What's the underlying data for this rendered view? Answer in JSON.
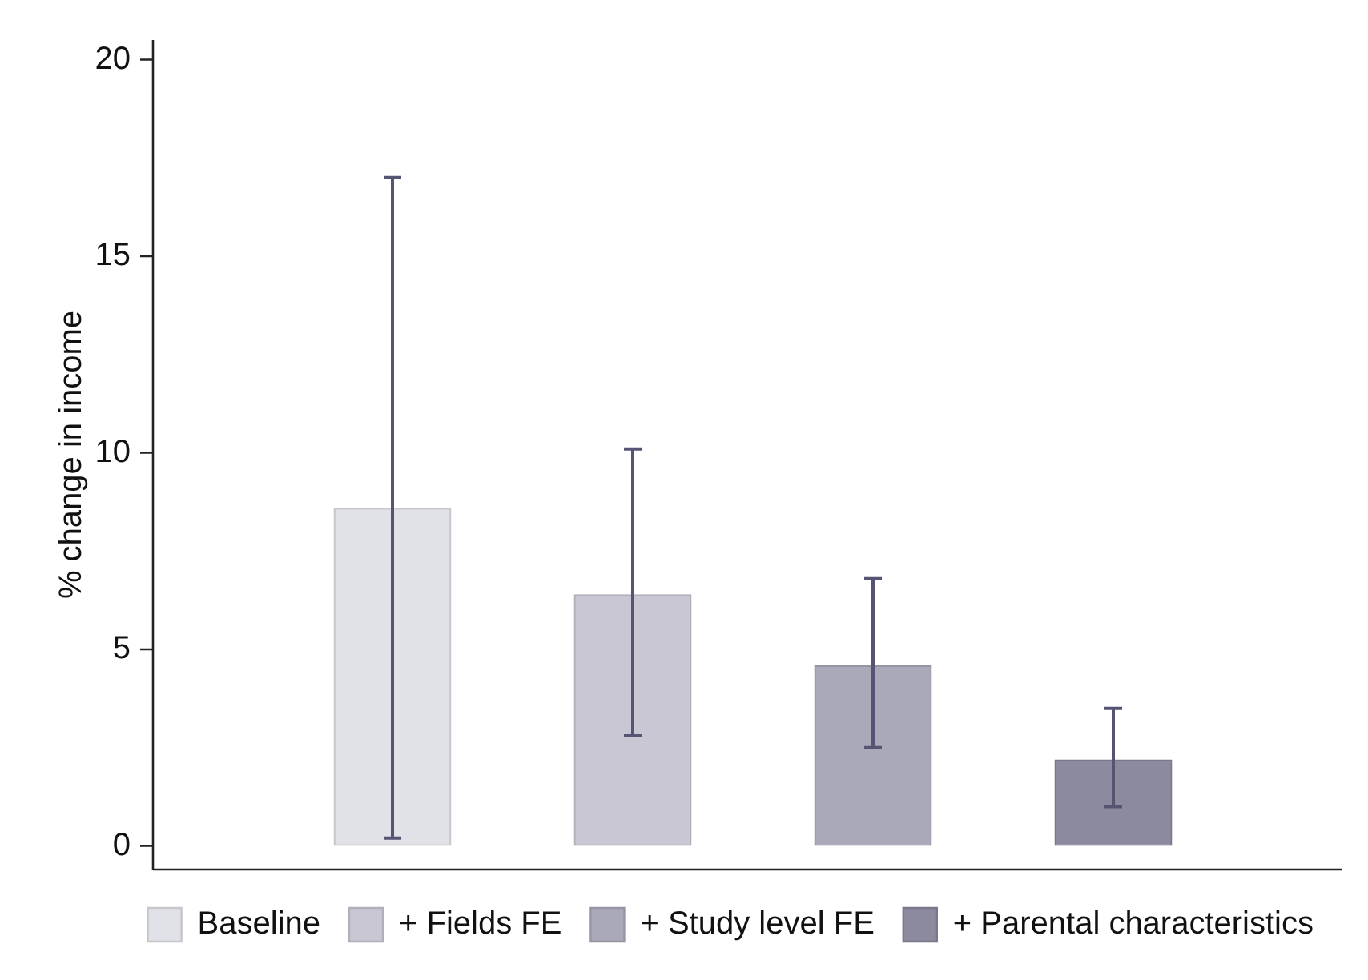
{
  "chart_data": {
    "type": "bar",
    "ylabel": "% change in income",
    "categories": [
      null,
      null,
      null,
      null
    ],
    "series": [
      {
        "name": "Baseline",
        "color": "#e1e2e8",
        "values": [
          8.6,
          null,
          null,
          null
        ],
        "errors": [
          [
            0.2,
            17.0
          ],
          null,
          null,
          null
        ]
      },
      {
        "name": "+ Fields FE",
        "color": "#c8c7d3",
        "values": [
          null,
          6.4,
          null,
          null
        ],
        "errors": [
          null,
          [
            2.8,
            10.1
          ],
          null,
          null
        ]
      },
      {
        "name": "+ Study level FE",
        "color": "#aaa9ba",
        "values": [
          null,
          null,
          4.6,
          null
        ],
        "errors": [
          null,
          null,
          [
            2.5,
            6.8
          ],
          null
        ]
      },
      {
        "name": "+ Parental characteristics",
        "color": "#8b8a9f",
        "values": [
          null,
          null,
          null,
          2.2
        ],
        "errors": [
          null,
          null,
          null,
          [
            1.0,
            3.5
          ]
        ]
      }
    ],
    "ylim": [
      -0.6,
      20.5
    ],
    "yticks": [
      0,
      5,
      10,
      15,
      20
    ],
    "legend": "bottom"
  }
}
